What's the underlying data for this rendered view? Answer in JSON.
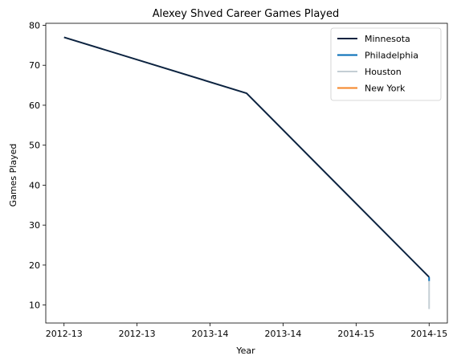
{
  "chart_data": {
    "type": "line",
    "title": "Alexey Shved Career Games Played",
    "xlabel": "Year",
    "ylabel": "Games Played",
    "x_ticks": [
      "2012-13",
      "2012-13",
      "2013-14",
      "2013-14",
      "2014-15",
      "2014-15"
    ],
    "x_tick_values": [
      0,
      0.4,
      0.8,
      1.2,
      1.6,
      2.0
    ],
    "xlim": [
      -0.1,
      2.1
    ],
    "ylim": [
      5.5,
      80.5
    ],
    "y_ticks": [
      10,
      20,
      30,
      40,
      50,
      60,
      70,
      80
    ],
    "grid": false,
    "legend_position": "top-right",
    "series": [
      {
        "name": "Minnesota",
        "color": "#0c2340",
        "x": [
          0,
          1,
          2
        ],
        "values": [
          77,
          63,
          17
        ]
      },
      {
        "name": "Philadelphia",
        "color": "#006bb6",
        "x": [
          2,
          2
        ],
        "values": [
          17,
          16
        ]
      },
      {
        "name": "Houston",
        "color": "#c4ced4",
        "x": [
          2,
          2
        ],
        "values": [
          16,
          9
        ]
      },
      {
        "name": "New York",
        "color": "#f58426",
        "x": [
          2,
          2
        ],
        "values": [
          9,
          9
        ]
      }
    ]
  }
}
